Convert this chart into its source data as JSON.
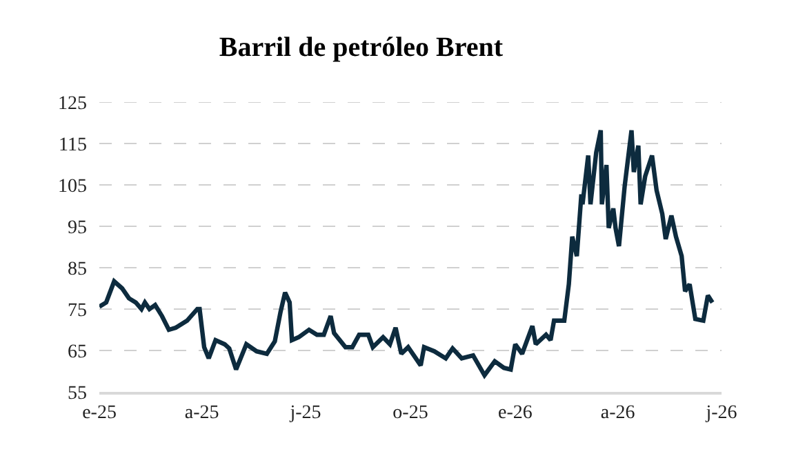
{
  "chart_data": {
    "type": "line",
    "title": "Barril de petróleo Brent",
    "x": [
      "2025-01-01",
      "2025-01-07",
      "2025-01-14",
      "2025-01-21",
      "2025-01-27",
      "2025-02-02",
      "2025-02-07",
      "2025-02-10",
      "2025-02-14",
      "2025-02-19",
      "2025-02-25",
      "2025-03-03",
      "2025-03-09",
      "2025-03-19",
      "2025-03-28",
      "2025-03-30",
      "2025-04-03",
      "2025-04-07",
      "2025-04-13",
      "2025-04-21",
      "2025-04-25",
      "2025-05-01",
      "2025-05-10",
      "2025-05-19",
      "2025-05-28",
      "2025-06-04",
      "2025-06-09",
      "2025-06-13",
      "2025-06-17",
      "2025-06-19",
      "2025-06-25",
      "2025-07-04",
      "2025-07-11",
      "2025-07-17",
      "2025-07-23",
      "2025-07-26",
      "2025-08-05",
      "2025-08-11",
      "2025-08-17",
      "2025-08-25",
      "2025-08-29",
      "2025-09-07",
      "2025-09-13",
      "2025-09-18",
      "2025-09-23",
      "2025-09-29",
      "2025-10-10",
      "2025-10-13",
      "2025-10-22",
      "2025-11-01",
      "2025-11-07",
      "2025-11-15",
      "2025-11-25",
      "2025-12-05",
      "2025-12-14",
      "2025-12-22",
      "2025-12-28",
      "2026-01-01",
      "2026-01-07",
      "2026-01-16",
      "2026-01-19",
      "2026-01-28",
      "2026-02-01",
      "2026-02-04",
      "2026-02-13",
      "2026-02-17",
      "2026-02-20",
      "2026-02-24",
      "2026-02-28",
      "2026-03-01",
      "2026-03-06",
      "2026-03-08",
      "2026-03-13",
      "2026-03-17",
      "2026-03-18",
      "2026-03-22",
      "2026-03-24",
      "2026-03-28",
      "2026-03-30",
      "2026-04-02",
      "2026-04-07",
      "2026-04-13",
      "2026-04-15",
      "2026-04-19",
      "2026-04-21",
      "2026-04-25",
      "2026-05-01",
      "2026-05-05",
      "2026-05-10",
      "2026-05-13",
      "2026-05-18",
      "2026-05-22",
      "2026-05-27",
      "2026-05-30",
      "2026-06-03",
      "2026-06-08",
      "2026-06-15",
      "2026-06-19",
      "2026-06-23"
    ],
    "series": [
      {
        "color": "#0d2b3e",
        "values": [
          75.6,
          76.6,
          81.7,
          80,
          77.6,
          76.6,
          75,
          76.6,
          75,
          76,
          73.3,
          70,
          70.5,
          72.2,
          75,
          75,
          65.8,
          63.1,
          67.5,
          66.5,
          65.5,
          60.4,
          66.5,
          64.8,
          64.2,
          67.2,
          74.3,
          79,
          76.6,
          67.5,
          68.2,
          70,
          68.8,
          68.8,
          73.3,
          69.2,
          65.8,
          65.8,
          68.8,
          68.8,
          65.8,
          68.2,
          66.5,
          70.5,
          64.2,
          65.8,
          61.4,
          65.8,
          64.8,
          63.1,
          65.5,
          63.1,
          63.8,
          59,
          62.4,
          60.8,
          60.4,
          66.5,
          64.2,
          70.9,
          66.5,
          68.8,
          67.5,
          72.2,
          72.2,
          81,
          92.5,
          87.8,
          102.7,
          100.3,
          112.1,
          100.3,
          112.8,
          118.2,
          100.3,
          109.8,
          94.6,
          99.3,
          94.6,
          90.2,
          104.7,
          118.2,
          108.1,
          114.5,
          100.3,
          107.1,
          112.1,
          103.7,
          98,
          91.9,
          97.6,
          92.5,
          87.8,
          79.3,
          81,
          72.6,
          72.2,
          78.3,
          76.6
        ]
      }
    ],
    "xlim": [
      "2025-01-01",
      "2026-07-01"
    ],
    "xticks": [
      {
        "value": "2025-01-01",
        "label": "e-25"
      },
      {
        "value": "2025-04-01",
        "label": "a-25"
      },
      {
        "value": "2025-07-01",
        "label": "j-25"
      },
      {
        "value": "2025-10-01",
        "label": "o-25"
      },
      {
        "value": "2026-01-01",
        "label": "e-26"
      },
      {
        "value": "2026-04-01",
        "label": "a-26"
      },
      {
        "value": "2026-07-01",
        "label": "j-26"
      }
    ],
    "ylim": [
      55,
      125
    ],
    "yticks": [
      55,
      65,
      75,
      85,
      95,
      105,
      115,
      125
    ],
    "grid": "y",
    "marker": "none",
    "line_style": "solid"
  }
}
